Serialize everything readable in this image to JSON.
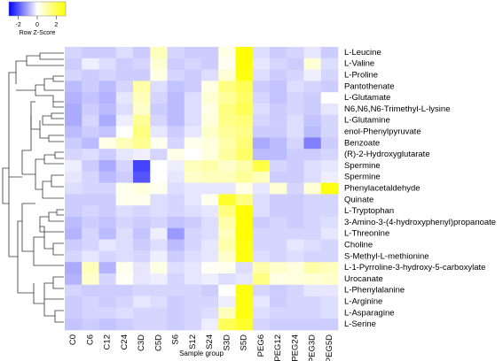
{
  "chart_data": {
    "type": "heatmap",
    "x_label": "Sample group",
    "colorbar_label": "Row Z-Score",
    "colors": [
      "#0000ff",
      "#ffffff",
      "#ffff00"
    ],
    "zlim": [
      -3,
      3
    ],
    "zticks": [
      -2,
      0,
      2
    ],
    "columns": [
      "C0",
      "C6",
      "C12",
      "C24",
      "C3D",
      "C5D",
      "S6",
      "S12",
      "S24",
      "S3D",
      "S5D",
      "PEG6",
      "PEG12",
      "PEG24",
      "PEG3D",
      "PEG5D"
    ],
    "rows": [
      "L-Leucine",
      "L-Valine",
      "L-Proline",
      "Pantothenate",
      "L-Glutamate",
      "N6,N6,N6-Trimethyl-L-lysine",
      "L-Glutamine",
      "enol-Phenylpyruvate",
      "Benzoate",
      "(R)-2-Hydroxyglutarate",
      "Spermine",
      "Spermine",
      "Phenylacetaldehyde",
      "Quinate",
      "L-Tryptophan",
      "3-Amino-3-(4-hydroxyphenyl)propanoate",
      "L-Threonine",
      "Choline",
      "S-Methyl-L-methionine",
      "L-1-Pyrroline-3-hydroxy-5-carboxylate",
      "Urocanate",
      "L-Phenylalanine",
      "L-Arginine",
      "L-Asparagine",
      "L-Serine"
    ],
    "z": [
      [
        -0.5,
        -0.6,
        -0.6,
        -0.4,
        -0.6,
        0.8,
        -0.5,
        -0.6,
        -0.6,
        0.3,
        3,
        -0.4,
        -0.6,
        -0.5,
        -0.3,
        -0.6
      ],
      [
        -0.6,
        -0.2,
        -0.4,
        -0.6,
        -0.5,
        0.5,
        -0.6,
        -0.5,
        -0.6,
        0.2,
        3,
        -0.3,
        -0.5,
        -0.6,
        0.5,
        -0.4
      ],
      [
        -0.5,
        -0.6,
        -0.5,
        -0.6,
        -0.6,
        0.3,
        -0.5,
        -0.6,
        -0.4,
        0.5,
        2.8,
        -0.4,
        -0.6,
        -0.5,
        -0.2,
        -0.5
      ],
      [
        -0.8,
        -0.6,
        -0.8,
        -0.5,
        1,
        -0.4,
        -0.7,
        -0.6,
        0.3,
        1.5,
        2,
        -0.6,
        -0.7,
        -0.4,
        -0.5,
        -0.6
      ],
      [
        -0.9,
        -0.7,
        -0.9,
        -0.3,
        0.8,
        -0.5,
        -0.8,
        -0.4,
        0.5,
        1.2,
        1.8,
        -0.5,
        -0.7,
        -0.5,
        -0.6,
        0
      ],
      [
        -1,
        -0.6,
        -0.8,
        -0.4,
        0.6,
        -0.6,
        -0.8,
        -0.4,
        0.3,
        1.5,
        2,
        -0.4,
        -0.6,
        -0.5,
        -0.6,
        -0.3
      ],
      [
        -1,
        -0.5,
        -1,
        -0.2,
        1.2,
        -0.5,
        -0.8,
        -0.4,
        0.4,
        1.4,
        1.6,
        -0.5,
        -0.6,
        -0.4,
        -0.7,
        -0.5
      ],
      [
        -0.8,
        -0.6,
        -0.7,
        0,
        1.5,
        -0.3,
        -0.6,
        -0.3,
        0.6,
        1.2,
        1.4,
        -0.6,
        -0.6,
        -0.4,
        -0.8,
        -0.5
      ],
      [
        -0.6,
        -0.8,
        0.3,
        0.8,
        1.3,
        0.2,
        -0.5,
        0.2,
        0.4,
        1,
        1.6,
        -1,
        -0.8,
        -0.5,
        -1.5,
        -0.6
      ],
      [
        -0.5,
        -0.4,
        -0.6,
        -0.3,
        -0.2,
        -0.5,
        0.3,
        0,
        0.4,
        1.1,
        1.8,
        -0.8,
        -0.8,
        -0.6,
        -0.6,
        -0.5
      ],
      [
        -0.2,
        -0.6,
        -1,
        -0.5,
        -2.2,
        0,
        -0.2,
        0.8,
        1,
        0.6,
        1,
        2.2,
        -0.5,
        -0.6,
        -0.4,
        -0.3
      ],
      [
        -0.3,
        -0.5,
        -0.8,
        -0.6,
        -2,
        0,
        -0.3,
        0.6,
        0.8,
        0.8,
        1.2,
        0.8,
        -0.6,
        -0.6,
        -0.4,
        -0.2
      ],
      [
        -0.4,
        -0.5,
        -0.5,
        0.2,
        0.4,
        0.2,
        -0.4,
        -0.3,
        -0.3,
        -0.3,
        0.3,
        -0.3,
        0.5,
        -0.5,
        0.5,
        2.8
      ],
      [
        -0.6,
        -0.6,
        -0.6,
        0.2,
        0.2,
        -0.4,
        -0.5,
        -0.3,
        0.2,
        2.5,
        1.5,
        -0.4,
        -0.6,
        -0.6,
        -0.5,
        -0.5
      ],
      [
        -0.6,
        -0.5,
        -0.6,
        -0.4,
        -0.5,
        -0.4,
        -0.5,
        -0.4,
        -0.3,
        1.5,
        3,
        -0.4,
        -0.6,
        -0.6,
        -0.5,
        -0.5
      ],
      [
        -0.8,
        -0.6,
        -0.7,
        -0.5,
        -0.6,
        -0.5,
        -0.7,
        -0.6,
        -0.4,
        1,
        3,
        -0.6,
        -0.5,
        -0.6,
        -0.5,
        -0.4
      ],
      [
        -0.9,
        -0.5,
        -0.8,
        -0.4,
        -0.7,
        -0.2,
        -1.2,
        -0.5,
        -0.4,
        0.8,
        3,
        -0.5,
        -0.5,
        -0.5,
        -0.5,
        -0.3
      ],
      [
        -0.6,
        -0.5,
        -0.3,
        -0.4,
        -0.6,
        -0.4,
        -0.8,
        -0.5,
        -0.3,
        1,
        2.8,
        -0.5,
        -0.5,
        -0.3,
        -0.4,
        -0.5
      ],
      [
        -0.5,
        -0.3,
        -0.5,
        -0.4,
        -0.5,
        -0.2,
        -0.6,
        -0.4,
        -0.3,
        0.6,
        2.8,
        -0.4,
        -0.5,
        -0.4,
        -0.5,
        -0.5
      ],
      [
        -1,
        0.8,
        -0.9,
        0.2,
        -0.3,
        0.3,
        -0.4,
        -0.3,
        0.1,
        0.2,
        -0.4,
        1,
        0.6,
        0.4,
        1,
        0.8
      ],
      [
        -0.9,
        0.6,
        -0.5,
        0.1,
        -0.3,
        -0.2,
        -0.5,
        -0.3,
        -0.2,
        -0.4,
        -0.3,
        1.5,
        0.3,
        0.4,
        0.5,
        0.6
      ],
      [
        -0.5,
        -0.6,
        -0.6,
        -0.6,
        -0.5,
        -0.5,
        -0.5,
        -0.5,
        -0.6,
        0,
        2.8,
        -0.5,
        -0.6,
        -0.5,
        -0.3,
        -0.3
      ],
      [
        -0.6,
        -0.5,
        -0.6,
        -0.5,
        -0.3,
        -0.4,
        -0.6,
        -0.5,
        -0.5,
        -0.2,
        2.8,
        -0.3,
        -0.6,
        -0.5,
        -0.5,
        -0.4
      ],
      [
        -0.6,
        -0.5,
        -0.5,
        -0.4,
        -0.5,
        -0.5,
        -0.6,
        -0.5,
        -0.4,
        0.8,
        2.8,
        -0.4,
        -0.5,
        -0.5,
        -0.5,
        -0.4
      ],
      [
        -0.7,
        -0.6,
        -0.7,
        -0.6,
        -0.5,
        -0.5,
        -0.6,
        -0.5,
        -0.2,
        2,
        2.5,
        -0.5,
        -0.6,
        -0.6,
        -0.6,
        -0.6
      ]
    ]
  }
}
